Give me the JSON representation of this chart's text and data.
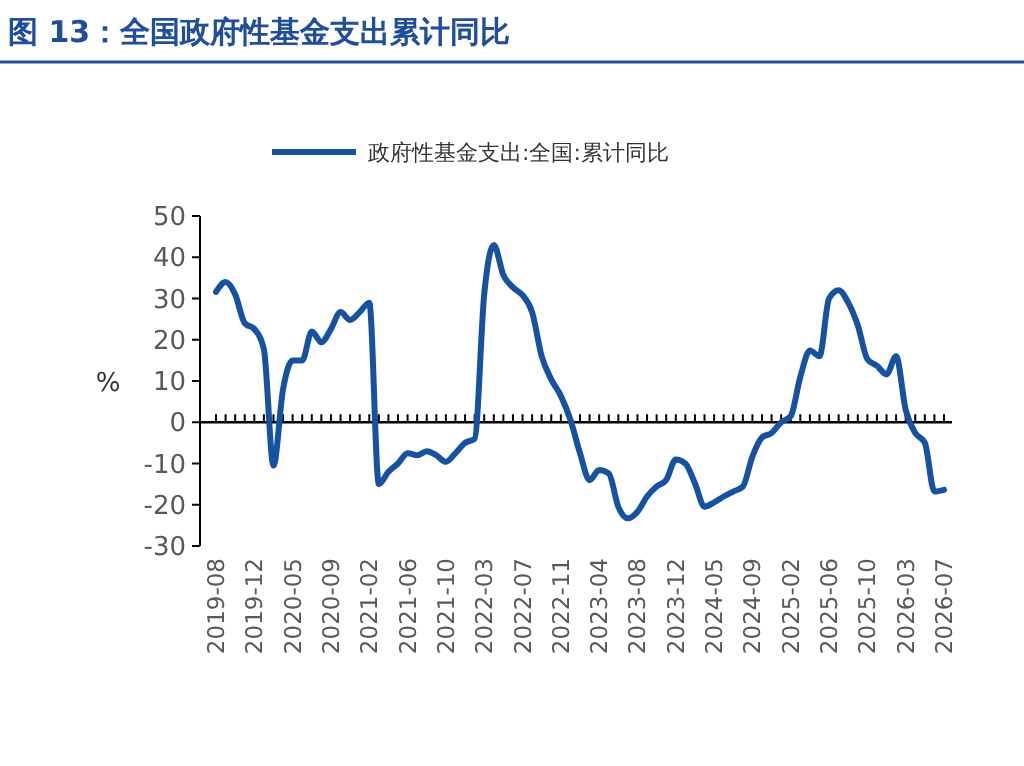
{
  "chart_data": {
    "type": "line",
    "title": "图 13：全国政府性基金支出累计同比",
    "ylabel": "%",
    "legend": "top",
    "marker": "none",
    "line_style": "solid",
    "categories": [
      "2019-08",
      null,
      null,
      null,
      "2019-12",
      null,
      null,
      null,
      "2020-05",
      null,
      null,
      null,
      "2020-09",
      null,
      null,
      null,
      "2021-02",
      null,
      null,
      null,
      "2021-06",
      null,
      null,
      null,
      "2021-10",
      null,
      null,
      null,
      "2022-03",
      null,
      null,
      null,
      "2022-07",
      null,
      null,
      null,
      "2022-11",
      null,
      null,
      null,
      "2023-04",
      null,
      null,
      null,
      "2023-08",
      null,
      null,
      null,
      "2023-12",
      null,
      null,
      null,
      "2024-05",
      null,
      null,
      null,
      "2024-09",
      null,
      null,
      null,
      "2025-02",
      null,
      null,
      null,
      "2025-06",
      null,
      null,
      null,
      "2025-10",
      null,
      null,
      null,
      "2026-03",
      null,
      null,
      null,
      "2026-07"
    ],
    "ylim": [
      -30,
      50
    ],
    "yticks": [
      -30,
      -20,
      -10,
      0,
      10,
      20,
      30,
      40,
      50
    ],
    "series": [
      {
        "name": "政府性基金支出:全国:累计同比",
        "color": "#1552a3",
        "values": [
          31.6,
          34,
          31,
          24,
          22.6,
          17.7,
          -10.5,
          8,
          15,
          15,
          22,
          19.4,
          22.6,
          26.7,
          24.8,
          26.7,
          29,
          -15,
          -12,
          -10,
          -7.5,
          -8,
          -7,
          -8,
          -9.6,
          -7.5,
          -5,
          -4,
          31,
          43,
          35.7,
          32.7,
          30.8,
          26.7,
          16,
          10.4,
          6.4,
          0.6,
          -7.5,
          -14,
          -11.6,
          -12.4,
          -20.5,
          -23.3,
          -21.7,
          -18,
          -15.6,
          -14,
          -9,
          -10,
          -14.8,
          -20.5,
          -19.4,
          -18,
          -16.8,
          -15.6,
          -8.3,
          -3.7,
          -2.6,
          0,
          1.5,
          11,
          17.4,
          16,
          30,
          32,
          29,
          23.5,
          15.3,
          13.7,
          11.6,
          16,
          3,
          -2.6,
          -5,
          -16.8,
          -16.4
        ]
      }
    ]
  }
}
